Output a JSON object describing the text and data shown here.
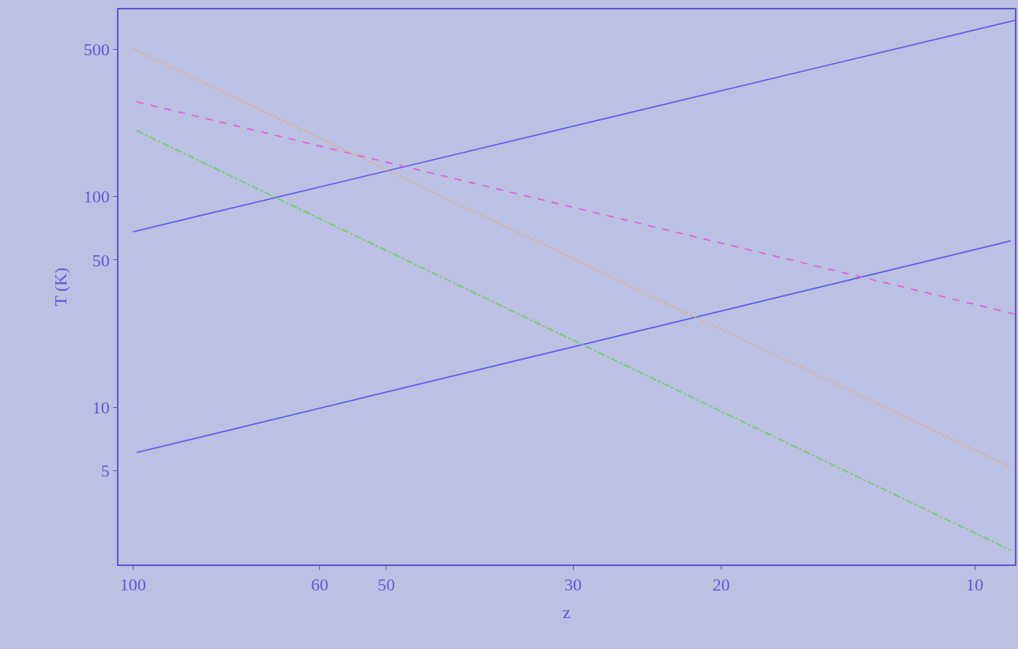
{
  "chart_data": {
    "type": "line",
    "xlabel": "z",
    "ylabel": "T (K)",
    "log": "xy",
    "grid": false,
    "marker": "none",
    "xlim": [
      104,
      8.96
    ],
    "xticks": [
      100,
      60,
      50,
      30,
      20,
      10
    ],
    "ylim": [
      1.8,
      770
    ],
    "yticks": [
      5,
      10,
      50,
      100,
      500
    ],
    "series": [
      {
        "color": "#5a5ae6",
        "line_style": "solid",
        "x": [
          100,
          8.96
        ],
        "values": [
          68,
          684
        ]
      },
      {
        "color": "#5a5ae6",
        "line_style": "solid",
        "x": [
          99,
          9.06
        ],
        "values": [
          6.1,
          61.6
        ]
      },
      {
        "color": "#e060d8",
        "line_style": "dashed",
        "x": [
          99,
          8.96
        ],
        "values": [
          281,
          27.7
        ]
      },
      {
        "color": "#e8a878",
        "line_style": "dotted",
        "x": [
          100,
          9.06
        ],
        "values": [
          500,
          5.2
        ]
      },
      {
        "color": "#66d066",
        "line_style": "dashdot",
        "x": [
          99,
          9.06
        ],
        "values": [
          205,
          2.1
        ]
      }
    ]
  }
}
